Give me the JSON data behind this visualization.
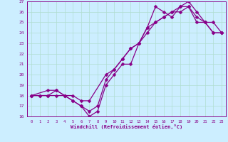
{
  "xlabel": "Windchill (Refroidissement éolien,°C)",
  "bg_color": "#cceeff",
  "line_color": "#880088",
  "grid_color": "#b0ddd0",
  "xlim": [
    -0.5,
    23.5
  ],
  "ylim": [
    16,
    27
  ],
  "xticks": [
    0,
    1,
    2,
    3,
    4,
    5,
    6,
    7,
    8,
    9,
    10,
    11,
    12,
    13,
    14,
    15,
    16,
    17,
    18,
    19,
    20,
    21,
    22,
    23
  ],
  "yticks": [
    16,
    17,
    18,
    19,
    20,
    21,
    22,
    23,
    24,
    25,
    26,
    27
  ],
  "line1_x": [
    0,
    1,
    2,
    3,
    4,
    5,
    6,
    7,
    8,
    9,
    10,
    11,
    12,
    13,
    14,
    15,
    16,
    17,
    18,
    19,
    20,
    21,
    22,
    23
  ],
  "line1_y": [
    18,
    18,
    18,
    18,
    18,
    17.5,
    17,
    16,
    16.5,
    19,
    20,
    21,
    21,
    23,
    24.5,
    26.5,
    26,
    25.5,
    26.5,
    27,
    26,
    25,
    25,
    24
  ],
  "line2_x": [
    0,
    2,
    3,
    4,
    5,
    6,
    7,
    9,
    10,
    11,
    12,
    13,
    14,
    15,
    16,
    17,
    18,
    19,
    20,
    21,
    22,
    23
  ],
  "line2_y": [
    18,
    18.5,
    18.5,
    18,
    18,
    17.5,
    17.5,
    20,
    20.5,
    21.5,
    22.5,
    23,
    24,
    25,
    25.5,
    26,
    26.5,
    26.5,
    25.5,
    25,
    24,
    24
  ],
  "line3_x": [
    0,
    1,
    2,
    3,
    4,
    5,
    6,
    7,
    8,
    9,
    10,
    11,
    12,
    13,
    14,
    15,
    16,
    17,
    18,
    19,
    20,
    21,
    22,
    23
  ],
  "line3_y": [
    18,
    18,
    18,
    18.5,
    18,
    17.5,
    17,
    16.5,
    17,
    19.5,
    20.5,
    21.5,
    22.5,
    23,
    24.5,
    25,
    25.5,
    26,
    26,
    26.5,
    25,
    25,
    24,
    24
  ],
  "marker": "D",
  "markersize": 2.5,
  "linewidth": 0.9
}
